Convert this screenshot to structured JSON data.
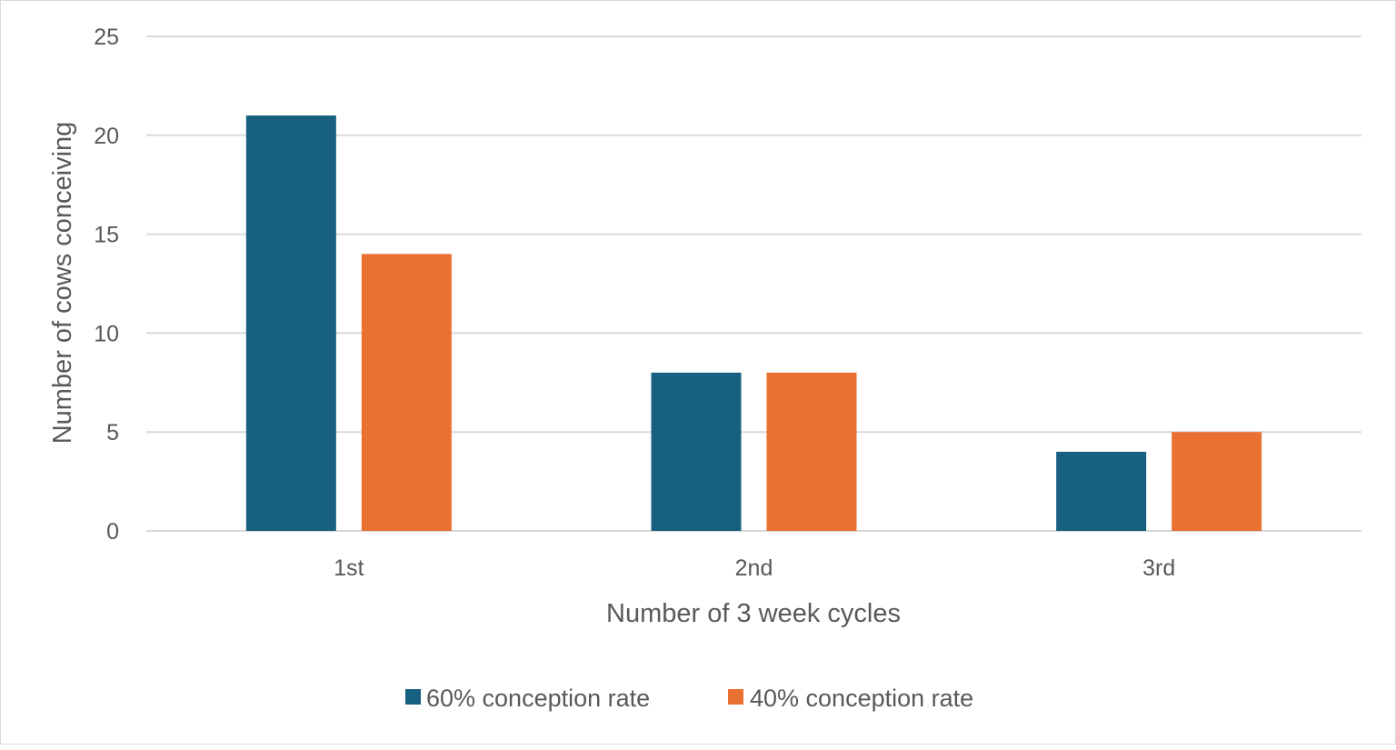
{
  "chart_data": {
    "type": "bar",
    "categories": [
      "1st",
      "2nd",
      "3rd"
    ],
    "series": [
      {
        "name": "60% conception rate",
        "values": [
          21,
          8,
          4
        ],
        "color": "#17607f"
      },
      {
        "name": "40% conception rate",
        "values": [
          14,
          8,
          5
        ],
        "color": "#e97132"
      }
    ],
    "xlabel": "Number of 3 week cycles",
    "ylabel": "Number of cows conceiving",
    "ylim": [
      0,
      25
    ],
    "yticks": [
      0,
      5,
      10,
      15,
      20,
      25
    ],
    "grid": true,
    "gridColor": "#d9d9d9",
    "legend": "bottom"
  }
}
